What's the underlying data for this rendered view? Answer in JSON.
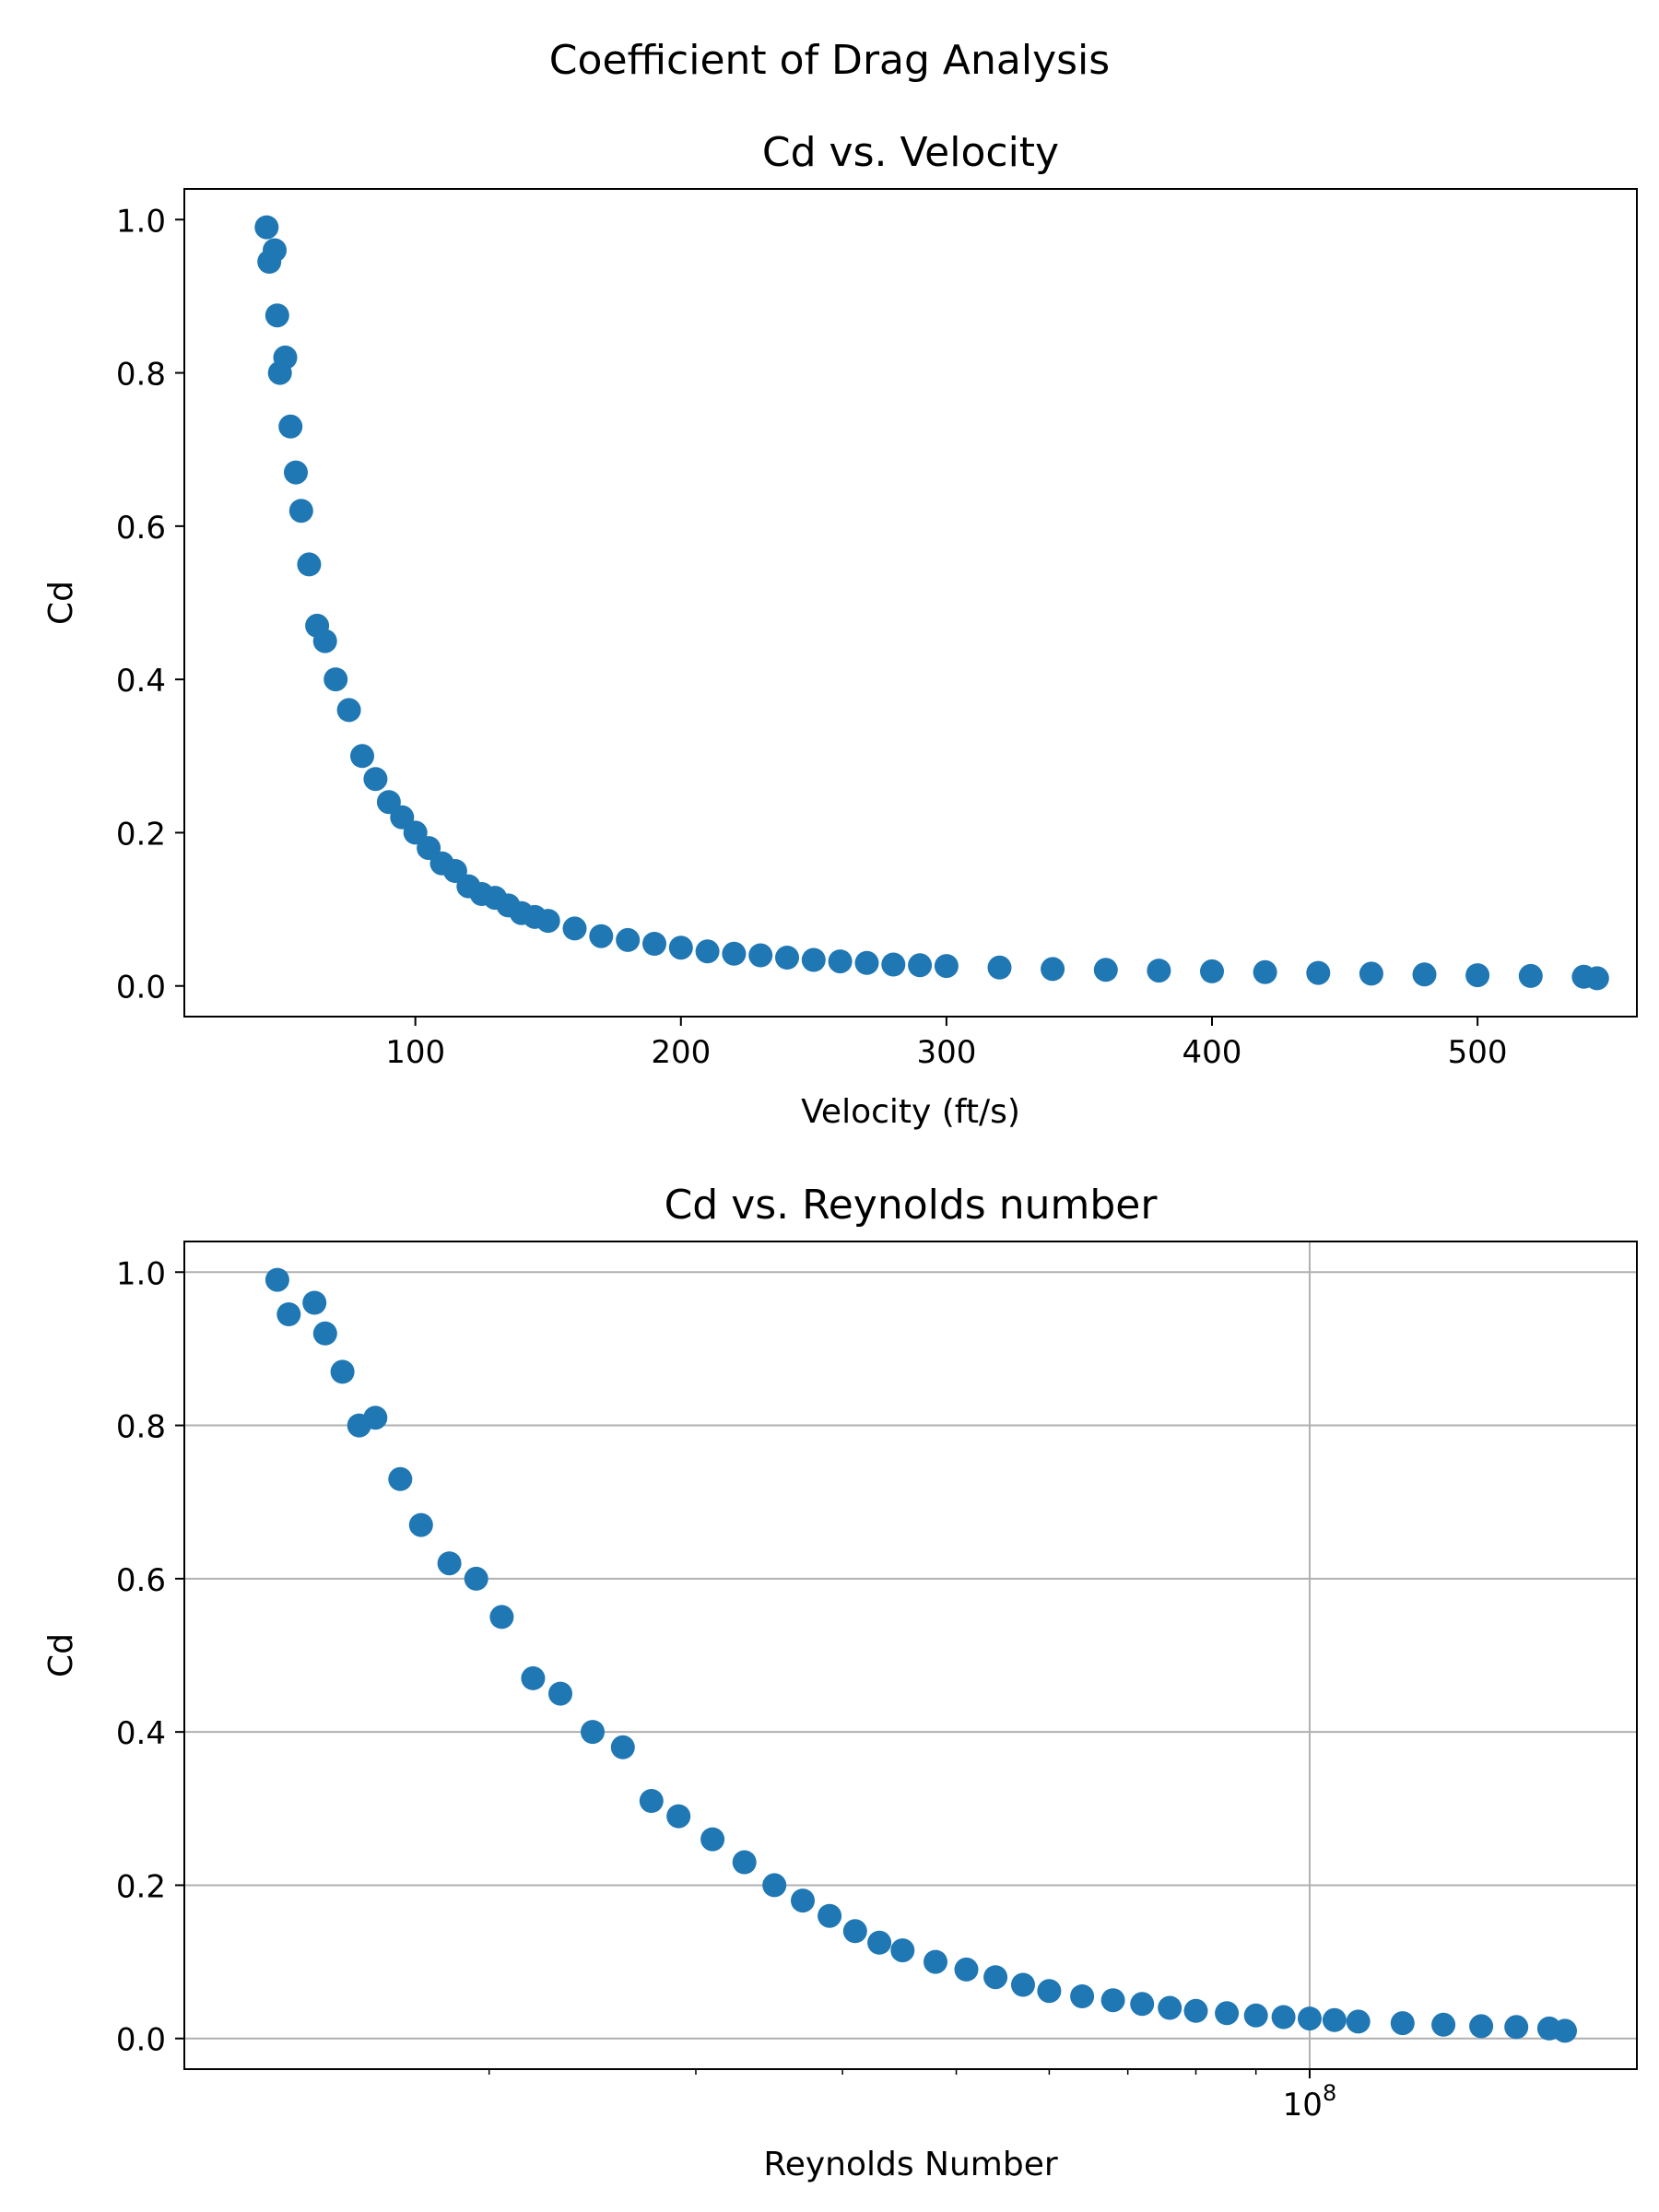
{
  "figure": {
    "suptitle": "Coefficient of Drag Analysis"
  },
  "chart_data": [
    {
      "type": "scatter",
      "title": "Cd vs. Velocity",
      "xlabel": "Velocity (ft/s)",
      "ylabel": "Cd",
      "xscale": "linear",
      "xlim": [
        13,
        560
      ],
      "ylim": [
        -0.04,
        1.04
      ],
      "xticks": [
        100,
        200,
        300,
        400,
        500
      ],
      "xtick_labels": [
        "100",
        "200",
        "300",
        "400",
        "500"
      ],
      "yticks": [
        0.0,
        0.2,
        0.4,
        0.6,
        0.8,
        1.0
      ],
      "ytick_labels": [
        "0.0",
        "0.2",
        "0.4",
        "0.6",
        "0.8",
        "1.0"
      ],
      "grid": false,
      "color": "#1f77b4",
      "series": [
        {
          "x": [
            44,
            45,
            47,
            48,
            49,
            51,
            53,
            55,
            57,
            60,
            63,
            66,
            70,
            75,
            80,
            85,
            90,
            95,
            100,
            105,
            110,
            115,
            120,
            125,
            130,
            135,
            140,
            145,
            150,
            160,
            170,
            180,
            190,
            200,
            210,
            220,
            230,
            240,
            250,
            260,
            270,
            280,
            290,
            300,
            320,
            340,
            360,
            380,
            400,
            420,
            440,
            460,
            480,
            500,
            520,
            540,
            545
          ],
          "y": [
            0.99,
            0.945,
            0.96,
            0.875,
            0.8,
            0.82,
            0.73,
            0.67,
            0.62,
            0.55,
            0.47,
            0.45,
            0.4,
            0.36,
            0.3,
            0.27,
            0.24,
            0.22,
            0.2,
            0.18,
            0.16,
            0.15,
            0.13,
            0.12,
            0.115,
            0.105,
            0.095,
            0.09,
            0.085,
            0.075,
            0.065,
            0.06,
            0.055,
            0.05,
            0.045,
            0.042,
            0.04,
            0.037,
            0.034,
            0.032,
            0.03,
            0.028,
            0.027,
            0.026,
            0.024,
            0.022,
            0.021,
            0.02,
            0.019,
            0.018,
            0.017,
            0.016,
            0.015,
            0.014,
            0.013,
            0.012,
            0.01
          ]
        }
      ]
    },
    {
      "type": "scatter",
      "title": "Cd vs. Reynolds number",
      "xlabel": "Reynolds Number",
      "ylabel": "Cd",
      "xscale": "log",
      "xlim": [
        11000000,
        190000000
      ],
      "ylim": [
        -0.04,
        1.04
      ],
      "xticks": [
        100000000
      ],
      "xtick_labels": [
        "10"
      ],
      "xtick_superscripts": [
        "8"
      ],
      "minor_xticks": [
        20000000,
        30000000,
        40000000,
        50000000,
        60000000,
        70000000,
        80000000,
        90000000,
        200000000
      ],
      "yticks": [
        0.0,
        0.2,
        0.4,
        0.6,
        0.8,
        1.0
      ],
      "ytick_labels": [
        "0.0",
        "0.2",
        "0.4",
        "0.6",
        "0.8",
        "1.0"
      ],
      "grid": true,
      "color": "#1f77b4",
      "series": [
        {
          "x": [
            13200000,
            13500000,
            14200000,
            14500000,
            15000000,
            15500000,
            16000000,
            16800000,
            17500000,
            18500000,
            19500000,
            20500000,
            21800000,
            23000000,
            24500000,
            26000000,
            27500000,
            29000000,
            31000000,
            33000000,
            35000000,
            37000000,
            39000000,
            41000000,
            43000000,
            45000000,
            48000000,
            51000000,
            54000000,
            57000000,
            60000000,
            64000000,
            68000000,
            72000000,
            76000000,
            80000000,
            85000000,
            90000000,
            95000000,
            100000000,
            105000000,
            110000000,
            120000000,
            130000000,
            140000000,
            150000000,
            160000000,
            165000000
          ],
          "y": [
            0.99,
            0.945,
            0.96,
            0.92,
            0.87,
            0.8,
            0.81,
            0.73,
            0.67,
            0.62,
            0.6,
            0.55,
            0.47,
            0.45,
            0.4,
            0.38,
            0.31,
            0.29,
            0.26,
            0.23,
            0.2,
            0.18,
            0.16,
            0.14,
            0.125,
            0.115,
            0.1,
            0.09,
            0.08,
            0.07,
            0.062,
            0.055,
            0.05,
            0.045,
            0.04,
            0.036,
            0.033,
            0.03,
            0.028,
            0.026,
            0.024,
            0.022,
            0.02,
            0.018,
            0.016,
            0.015,
            0.013,
            0.01
          ]
        }
      ]
    }
  ]
}
